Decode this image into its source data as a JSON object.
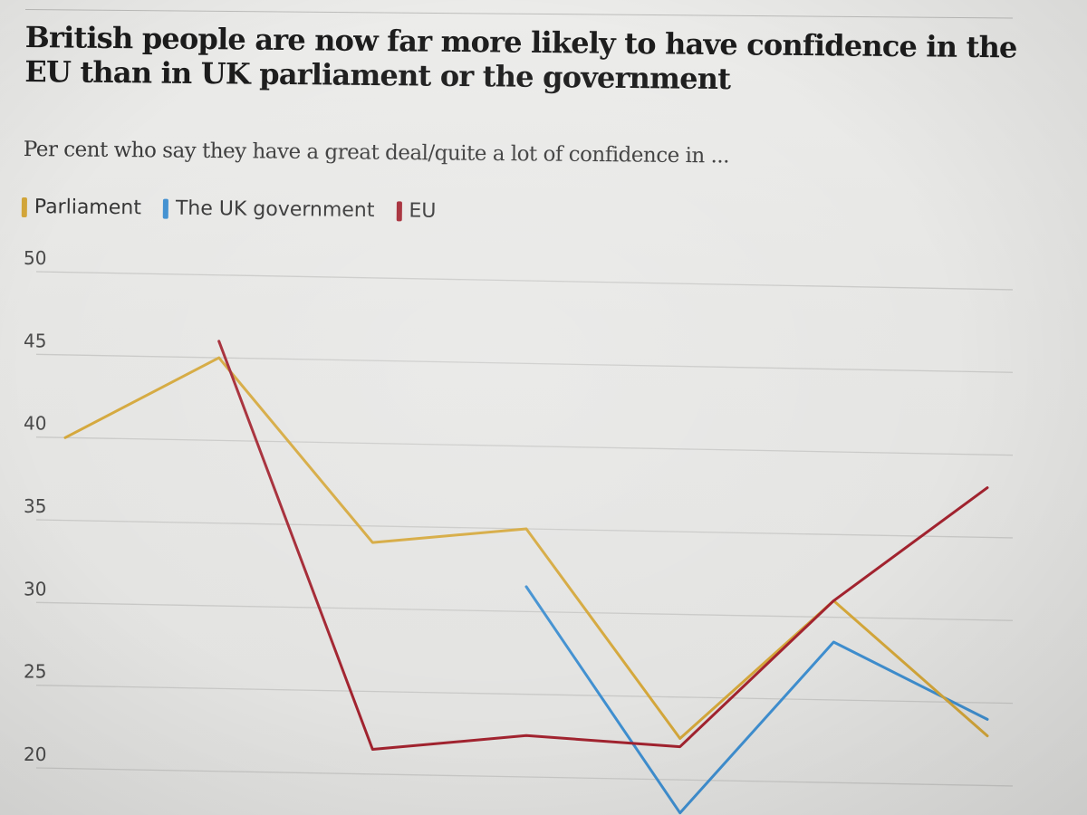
{
  "chart_data": {
    "type": "line",
    "title": "British people are now far more likely to have confidence in the EU than in UK parliament or the government",
    "subtitle": "Per cent who say they have a great deal/quite a lot of confidence in ...",
    "xlabel": "",
    "ylabel": "",
    "ylim": [
      20,
      50
    ],
    "yticks": [
      50,
      45,
      40,
      35,
      30,
      25,
      20
    ],
    "x": [
      1,
      2,
      3,
      4,
      5,
      6,
      7
    ],
    "grid": true,
    "legend_position": "top-left",
    "series": [
      {
        "name": "Parliament",
        "color": "#d4a73a",
        "values": [
          40,
          45,
          34,
          35,
          22.5,
          31,
          23
        ]
      },
      {
        "name": "The UK government",
        "color": "#3f8fd0",
        "values": [
          null,
          null,
          null,
          31.5,
          18,
          28.5,
          24
        ]
      },
      {
        "name": "EU",
        "color": "#a2232f",
        "values": [
          null,
          46,
          21.5,
          22.5,
          22,
          31,
          38
        ]
      }
    ]
  }
}
